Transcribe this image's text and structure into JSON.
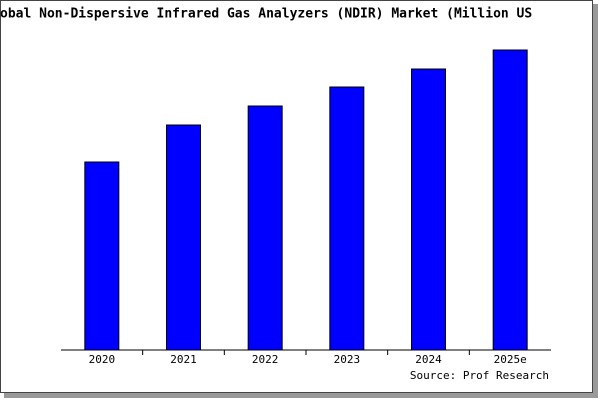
{
  "chart_data": {
    "type": "bar",
    "title": "obal Non-Dispersive Infrared Gas Analyzers (NDIR) Market (Million US",
    "categories": [
      "2020",
      "2021",
      "2022",
      "2023",
      "2024",
      "2025e"
    ],
    "values": [
      188,
      225,
      244,
      263,
      281,
      300
    ],
    "color": "#0000ff",
    "source": "Source: Prof Research"
  }
}
